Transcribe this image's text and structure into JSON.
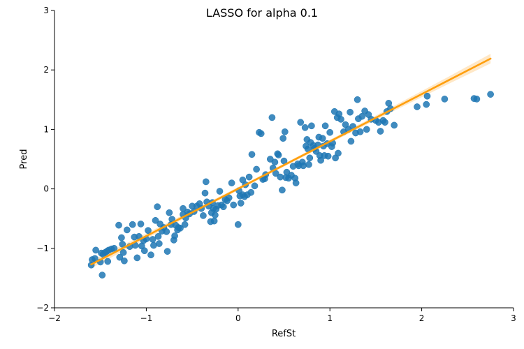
{
  "chart_data": {
    "type": "scatter",
    "title": "LASSO for alpha 0.1",
    "xlabel": "RefSt",
    "ylabel": "Pred",
    "xlim": [
      -2,
      3
    ],
    "ylim": [
      -2,
      3
    ],
    "xticks": [
      -2,
      -1,
      0,
      1,
      2,
      3
    ],
    "yticks": [
      -2,
      -1,
      0,
      1,
      2,
      3
    ],
    "xtick_labels": [
      "−2",
      "−1",
      "0",
      "1",
      "2",
      "3"
    ],
    "ytick_labels": [
      "−2",
      "−1",
      "0",
      "1",
      "2",
      "3"
    ],
    "grid": false,
    "point_color": "#1f77b4",
    "line_color": "#ff9f0e",
    "ci_color": "#ffd699",
    "regression": {
      "x0": -1.6,
      "y0": -1.27,
      "x1": 2.75,
      "y1": 2.19
    },
    "points": [
      [
        -1.6,
        -1.28
      ],
      [
        -1.59,
        -1.19
      ],
      [
        -1.56,
        -1.17
      ],
      [
        -1.55,
        -1.03
      ],
      [
        -1.5,
        -1.23
      ],
      [
        -1.49,
        -1.08
      ],
      [
        -1.48,
        -1.45
      ],
      [
        -1.47,
        -1.1
      ],
      [
        -1.45,
        -1.07
      ],
      [
        -1.43,
        -1.05
      ],
      [
        -1.42,
        -1.22
      ],
      [
        -1.41,
        -1.03
      ],
      [
        -1.38,
        -1.01
      ],
      [
        -1.35,
        -1.0
      ],
      [
        -1.3,
        -0.61
      ],
      [
        -1.29,
        -1.15
      ],
      [
        -1.27,
        -0.82
      ],
      [
        -1.26,
        -0.93
      ],
      [
        -1.25,
        -1.07
      ],
      [
        -1.24,
        -1.21
      ],
      [
        -1.21,
        -0.69
      ],
      [
        -1.18,
        -0.97
      ],
      [
        -1.15,
        -0.6
      ],
      [
        -1.13,
        -0.81
      ],
      [
        -1.12,
        -0.95
      ],
      [
        -1.1,
        -1.16
      ],
      [
        -1.08,
        -0.8
      ],
      [
        -1.06,
        -0.59
      ],
      [
        -1.05,
        -0.96
      ],
      [
        -1.03,
        -0.87
      ],
      [
        -1.02,
        -1.04
      ],
      [
        -1.0,
        -0.84
      ],
      [
        -0.98,
        -0.7
      ],
      [
        -0.95,
        -1.11
      ],
      [
        -0.93,
        -0.85
      ],
      [
        -0.92,
        -0.95
      ],
      [
        -0.9,
        -0.53
      ],
      [
        -0.88,
        -0.3
      ],
      [
        -0.87,
        -0.8
      ],
      [
        -0.86,
        -0.92
      ],
      [
        -0.85,
        -0.59
      ],
      [
        -0.83,
        -0.71
      ],
      [
        -0.81,
        -0.65
      ],
      [
        -0.78,
        -0.72
      ],
      [
        -0.77,
        -1.05
      ],
      [
        -0.75,
        -0.4
      ],
      [
        -0.73,
        -0.6
      ],
      [
        -0.72,
        -0.51
      ],
      [
        -0.7,
        -0.86
      ],
      [
        -0.69,
        -0.79
      ],
      [
        -0.68,
        -0.61
      ],
      [
        -0.66,
        -0.69
      ],
      [
        -0.65,
        -0.65
      ],
      [
        -0.63,
        -0.66
      ],
      [
        -0.6,
        -0.33
      ],
      [
        -0.6,
        -0.43
      ],
      [
        -0.58,
        -0.6
      ],
      [
        -0.57,
        -0.49
      ],
      [
        -0.55,
        -0.39
      ],
      [
        -0.53,
        -0.42
      ],
      [
        -0.5,
        -0.29
      ],
      [
        -0.48,
        -0.38
      ],
      [
        -0.45,
        -0.29
      ],
      [
        -0.42,
        -0.25
      ],
      [
        -0.4,
        -0.33
      ],
      [
        -0.38,
        -0.45
      ],
      [
        -0.36,
        -0.07
      ],
      [
        -0.35,
        0.12
      ],
      [
        -0.34,
        -0.22
      ],
      [
        -0.32,
        -0.29
      ],
      [
        -0.3,
        -0.55
      ],
      [
        -0.29,
        -0.4
      ],
      [
        -0.28,
        -0.23
      ],
      [
        -0.27,
        -0.33
      ],
      [
        -0.26,
        -0.54
      ],
      [
        -0.25,
        -0.44
      ],
      [
        -0.24,
        -0.34
      ],
      [
        -0.22,
        -0.28
      ],
      [
        -0.2,
        -0.04
      ],
      [
        -0.18,
        -0.27
      ],
      [
        -0.16,
        -0.3
      ],
      [
        -0.14,
        -0.18
      ],
      [
        -0.12,
        -0.2
      ],
      [
        -0.1,
        -0.15
      ],
      [
        -0.07,
        0.1
      ],
      [
        -0.05,
        -0.27
      ],
      [
        0.0,
        -0.6
      ],
      [
        0.01,
        -0.03
      ],
      [
        0.02,
        -0.12
      ],
      [
        0.03,
        -0.24
      ],
      [
        0.05,
        0.15
      ],
      [
        0.05,
        -0.1
      ],
      [
        0.07,
        -0.13
      ],
      [
        0.08,
        0.07
      ],
      [
        0.1,
        -0.1
      ],
      [
        0.12,
        0.2
      ],
      [
        0.14,
        -0.06
      ],
      [
        0.15,
        0.58
      ],
      [
        0.18,
        0.05
      ],
      [
        0.2,
        0.33
      ],
      [
        0.23,
        0.95
      ],
      [
        0.25,
        0.93
      ],
      [
        0.27,
        0.16
      ],
      [
        0.29,
        0.17
      ],
      [
        0.3,
        0.24
      ],
      [
        0.35,
        0.5
      ],
      [
        0.37,
        1.2
      ],
      [
        0.38,
        0.35
      ],
      [
        0.4,
        0.45
      ],
      [
        0.41,
        0.26
      ],
      [
        0.43,
        0.59
      ],
      [
        0.44,
        0.57
      ],
      [
        0.46,
        0.2
      ],
      [
        0.48,
        -0.02
      ],
      [
        0.49,
        0.85
      ],
      [
        0.5,
        0.47
      ],
      [
        0.51,
        0.96
      ],
      [
        0.52,
        0.19
      ],
      [
        0.53,
        0.28
      ],
      [
        0.55,
        0.18
      ],
      [
        0.58,
        0.23
      ],
      [
        0.6,
        0.38
      ],
      [
        0.62,
        0.18
      ],
      [
        0.63,
        0.1
      ],
      [
        0.65,
        0.42
      ],
      [
        0.66,
        0.39
      ],
      [
        0.68,
        1.12
      ],
      [
        0.7,
        0.45
      ],
      [
        0.71,
        0.39
      ],
      [
        0.73,
        1.03
      ],
      [
        0.74,
        0.72
      ],
      [
        0.75,
        0.83
      ],
      [
        0.76,
        0.67
      ],
      [
        0.77,
        0.41
      ],
      [
        0.78,
        0.52
      ],
      [
        0.79,
        0.78
      ],
      [
        0.8,
        1.06
      ],
      [
        0.82,
        0.73
      ],
      [
        0.83,
        0.68
      ],
      [
        0.85,
        0.63
      ],
      [
        0.87,
        0.74
      ],
      [
        0.88,
        0.87
      ],
      [
        0.89,
        0.56
      ],
      [
        0.9,
        0.48
      ],
      [
        0.92,
        0.85
      ],
      [
        0.93,
        0.72
      ],
      [
        0.94,
        0.56
      ],
      [
        0.95,
        1.06
      ],
      [
        0.97,
        0.76
      ],
      [
        0.98,
        0.55
      ],
      [
        1.0,
        0.95
      ],
      [
        1.02,
        0.71
      ],
      [
        1.03,
        0.77
      ],
      [
        1.05,
        1.3
      ],
      [
        1.06,
        0.52
      ],
      [
        1.08,
        1.2
      ],
      [
        1.09,
        0.6
      ],
      [
        1.1,
        1.26
      ],
      [
        1.12,
        1.17
      ],
      [
        1.15,
        0.96
      ],
      [
        1.17,
        1.08
      ],
      [
        1.2,
        1.0
      ],
      [
        1.22,
        1.29
      ],
      [
        1.23,
        0.8
      ],
      [
        1.25,
        1.05
      ],
      [
        1.28,
        0.94
      ],
      [
        1.3,
        1.5
      ],
      [
        1.31,
        1.18
      ],
      [
        1.33,
        0.96
      ],
      [
        1.35,
        1.22
      ],
      [
        1.38,
        1.31
      ],
      [
        1.4,
        1.0
      ],
      [
        1.42,
        1.25
      ],
      [
        1.45,
        1.17
      ],
      [
        1.5,
        1.15
      ],
      [
        1.53,
        1.12
      ],
      [
        1.55,
        0.97
      ],
      [
        1.58,
        1.15
      ],
      [
        1.6,
        1.12
      ],
      [
        1.62,
        1.3
      ],
      [
        1.64,
        1.44
      ],
      [
        1.66,
        1.35
      ],
      [
        1.7,
        1.07
      ],
      [
        1.95,
        1.38
      ],
      [
        2.05,
        1.42
      ],
      [
        2.06,
        1.56
      ],
      [
        2.25,
        1.51
      ],
      [
        2.57,
        1.52
      ],
      [
        2.6,
        1.51
      ],
      [
        2.75,
        1.59
      ]
    ]
  }
}
